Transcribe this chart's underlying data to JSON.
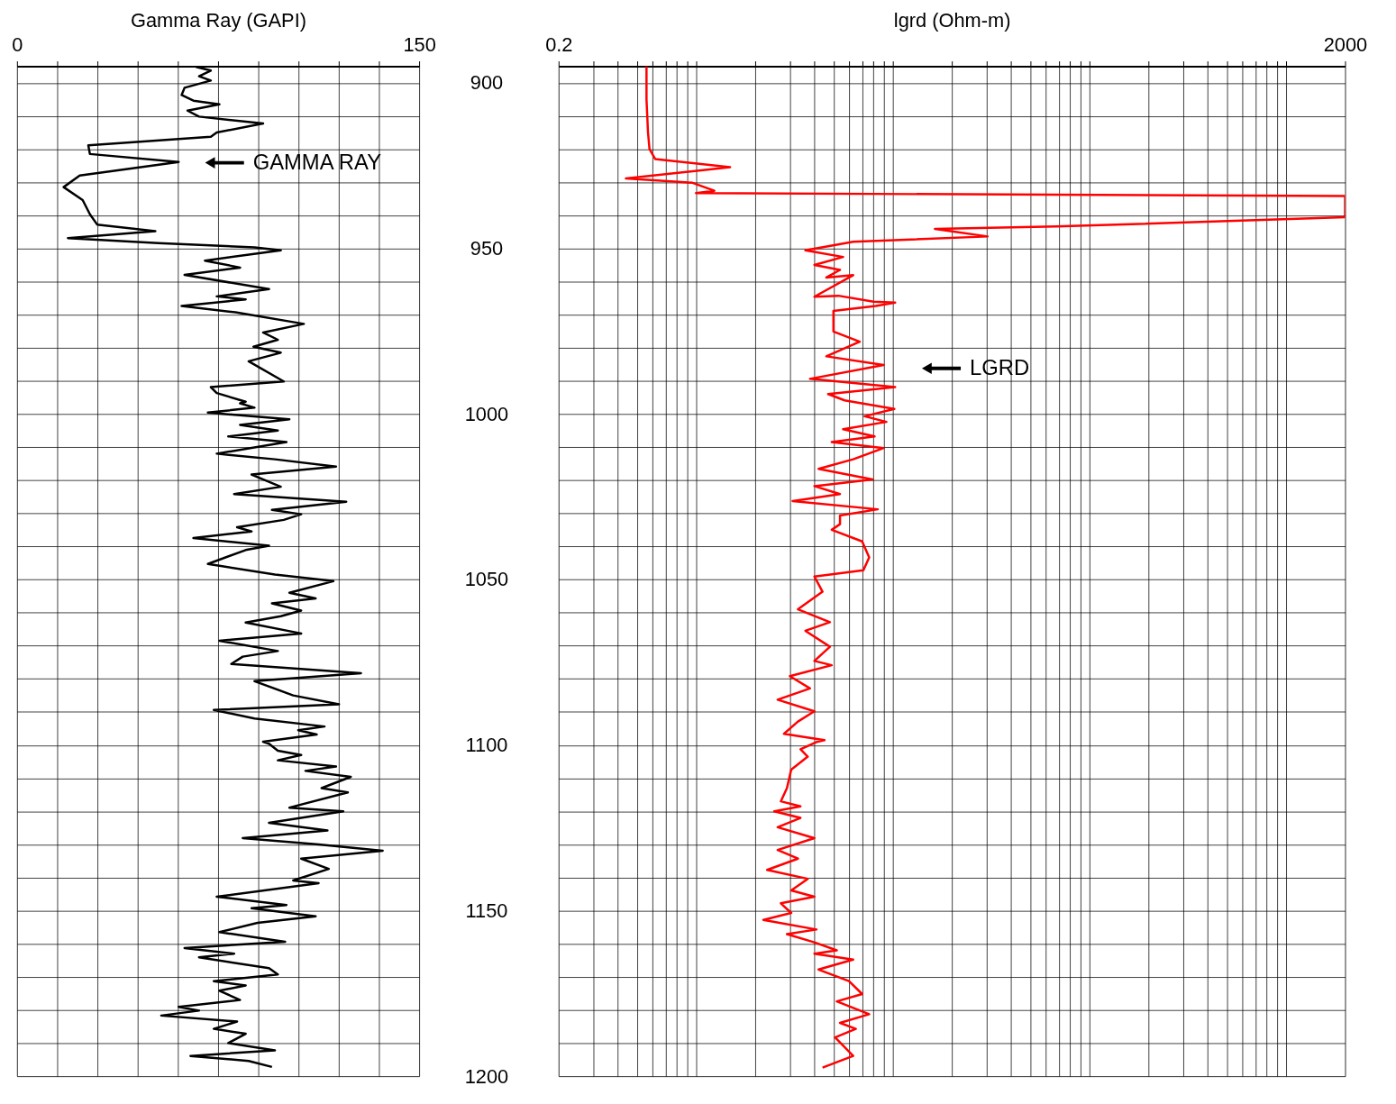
{
  "chart_data": [
    {
      "type": "line",
      "xlabel": "Gamma Ray (GAPI)",
      "xlim": [
        0,
        150
      ],
      "xticks": [
        0,
        {
          "value": 15,
          "label": null
        },
        {
          "value": 30,
          "label": null
        },
        {
          "value": 45,
          "label": null
        },
        {
          "value": 60,
          "label": null
        },
        {
          "value": 75,
          "label": null
        },
        {
          "value": 90,
          "label": null
        },
        {
          "value": 105,
          "label": null
        },
        {
          "value": 120,
          "label": null
        },
        {
          "value": 135,
          "label": null
        },
        150
      ],
      "ylim": [
        1200,
        895
      ],
      "yticks": [
        900,
        {
          "value": 910,
          "label": null
        },
        {
          "value": 920,
          "label": null
        },
        {
          "value": 930,
          "label": null
        },
        {
          "value": 940,
          "label": null
        },
        950,
        {
          "value": 960,
          "label": null
        },
        {
          "value": 970,
          "label": null
        },
        {
          "value": 980,
          "label": null
        },
        {
          "value": 990,
          "label": null
        },
        1000,
        {
          "value": 1010,
          "label": null
        },
        {
          "value": 1020,
          "label": null
        },
        {
          "value": 1030,
          "label": null
        },
        {
          "value": 1040,
          "label": null
        },
        1050,
        {
          "value": 1060,
          "label": null
        },
        {
          "value": 1070,
          "label": null
        },
        {
          "value": 1080,
          "label": null
        },
        {
          "value": 1090,
          "label": null
        },
        1100,
        {
          "value": 1110,
          "label": null
        },
        {
          "value": 1120,
          "label": null
        },
        {
          "value": 1130,
          "label": null
        },
        {
          "value": 1140,
          "label": null
        },
        1150,
        {
          "value": 1160,
          "label": null
        },
        {
          "value": 1170,
          "label": null
        },
        {
          "value": 1180,
          "label": null
        },
        {
          "value": 1190,
          "label": null
        },
        1200
      ],
      "grid": true,
      "line_style": "solid",
      "series": [
        {
          "name": "GAMMA RAY",
          "color": "#000000",
          "x": [
            66.8,
            72.3,
            67.9,
            72.3,
            62.5,
            61.4,
            65.8,
            75.5,
            63.6,
            67.9,
            91.8,
            74.5,
            72.3,
            26.6,
            27.2,
            60.3,
            23.4,
            17.4,
            24.5,
            27.2,
            29.9,
            51.6,
            19,
            52.7,
            88.6,
            98.4,
            70.1,
            83.2,
            62.5,
            94,
            74.5,
            85.3,
            61.4,
            81.5,
            107,
            91.8,
            97.3,
            88.2,
            98.4,
            86.4,
            99.5,
            72.3,
            74.5,
            85.3,
            83.2,
            88.6,
            71.2,
            101.6,
            83.2,
            97.3,
            78.8,
            100.5,
            74.5,
            96.2,
            119,
            87.5,
            98.4,
            81,
            122.8,
            95.1,
            106,
            99.5,
            82.1,
            87.5,
            65.8,
            94,
            85.3,
            71.2,
            96.2,
            118,
            101.6,
            111.4,
            95.1,
            106,
            98.4,
            85.3,
            106,
            75.5,
            97.3,
            84.2,
            79.9,
            128.3,
            88.6,
            103,
            120.1,
            73.4,
            88.6,
            114.7,
            104.9,
            111.8,
            91.8,
            94,
            97.3,
            106,
            97.3,
            119,
            107.6,
            124.5,
            113.6,
            123.4,
            101.6,
            121.7,
            94,
            115.8,
            84.2,
            112.5,
            136.4,
            106,
            116.3,
            103,
            112.5,
            74.5,
            100.5,
            87.5,
            111.4,
            89.7,
            75.5,
            100,
            62.5,
            81,
            67.9,
            94,
            97.3,
            73.4,
            85.3,
            75.5,
            83.2,
            60.3,
            67.9,
            53.8,
            82.1,
            73.4,
            85.3,
            78.8,
            96.2,
            64.7,
            86.4,
            95.1
          ],
          "values": [
            895.2,
            896.3,
            898,
            899.3,
            901.5,
            903.7,
            905.4,
            906.5,
            908.4,
            910.2,
            912.3,
            915,
            916.3,
            918.9,
            921.5,
            923.9,
            928,
            931.5,
            935.4,
            939.7,
            942.8,
            944.8,
            946.9,
            948.4,
            949.7,
            950.6,
            953.7,
            955.8,
            958,
            962.3,
            964.5,
            965.4,
            967.4,
            969.3,
            972.8,
            975.4,
            977.6,
            979.7,
            981.5,
            984.1,
            990.2,
            991.9,
            993.7,
            996.3,
            996.8,
            998.1,
            999.6,
            1001.6,
            1003.3,
            1005,
            1006.8,
            1008.5,
            1012,
            1013.7,
            1015.9,
            1018.3,
            1022,
            1024.2,
            1026.5,
            1029,
            1030.3,
            1032,
            1034.2,
            1035.5,
            1037.5,
            1039.8,
            1041.1,
            1045.3,
            1048.5,
            1050.5,
            1054,
            1055.7,
            1057.2,
            1059.4,
            1061.1,
            1063,
            1066.3,
            1068.5,
            1071.6,
            1073.3,
            1075.5,
            1078.3,
            1080.7,
            1085,
            1087.7,
            1089.4,
            1092,
            1094.4,
            1095.5,
            1096.8,
            1099.0,
            1099.6,
            1101.7,
            1103,
            1104.6,
            1106.5,
            1107.8,
            1109.6,
            1113,
            1114.3,
            1118.9,
            1120,
            1123.5,
            1125.8,
            1128.1,
            1130,
            1131.9,
            1134.3,
            1137.4,
            1140.9,
            1141.7,
            1145.8,
            1148.3,
            1149.3,
            1151.7,
            1153.7,
            1156.5,
            1159.4,
            1161.3,
            1163,
            1164.1,
            1167.4,
            1169.3,
            1171.3,
            1172.6,
            1174.2,
            1177,
            1179.1,
            1180.2,
            1181.7,
            1183.5,
            1185.7,
            1187.2,
            1190,
            1192.2,
            1193.9,
            1195.4,
            1197.2
          ]
        }
      ]
    },
    {
      "type": "line",
      "xlabel": "lgrd (Ohm-m)",
      "log": "x",
      "xlim": [
        0.2,
        2000
      ],
      "xticks": [
        0.2,
        {
          "value": 0.3,
          "label": null
        },
        {
          "value": 0.4,
          "label": null
        },
        {
          "value": 0.5,
          "label": null
        },
        {
          "value": 0.6,
          "label": null
        },
        {
          "value": 0.7,
          "label": null
        },
        {
          "value": 0.8,
          "label": null
        },
        {
          "value": 0.9,
          "label": null
        },
        {
          "value": 1,
          "label": null
        },
        {
          "value": 2,
          "label": null
        },
        {
          "value": 3,
          "label": null
        },
        {
          "value": 4,
          "label": null
        },
        {
          "value": 5,
          "label": null
        },
        {
          "value": 6,
          "label": null
        },
        {
          "value": 7,
          "label": null
        },
        {
          "value": 8,
          "label": null
        },
        {
          "value": 9,
          "label": null
        },
        {
          "value": 10,
          "label": null
        },
        {
          "value": 20,
          "label": null
        },
        {
          "value": 30,
          "label": null
        },
        {
          "value": 40,
          "label": null
        },
        {
          "value": 50,
          "label": null
        },
        {
          "value": 60,
          "label": null
        },
        {
          "value": 70,
          "label": null
        },
        {
          "value": 80,
          "label": null
        },
        {
          "value": 90,
          "label": null
        },
        {
          "value": 100,
          "label": null
        },
        {
          "value": 200,
          "label": null
        },
        {
          "value": 300,
          "label": null
        },
        {
          "value": 400,
          "label": null
        },
        {
          "value": 500,
          "label": null
        },
        {
          "value": 600,
          "label": null
        },
        {
          "value": 700,
          "label": null
        },
        {
          "value": 800,
          "label": null
        },
        {
          "value": 900,
          "label": null
        },
        {
          "value": 1000,
          "label": null
        },
        2000
      ],
      "ylim": [
        1200,
        895
      ],
      "yticks": [
        900,
        {
          "value": 910,
          "label": null
        },
        {
          "value": 920,
          "label": null
        },
        {
          "value": 930,
          "label": null
        },
        {
          "value": 940,
          "label": null
        },
        950,
        {
          "value": 960,
          "label": null
        },
        {
          "value": 970,
          "label": null
        },
        {
          "value": 980,
          "label": null
        },
        {
          "value": 990,
          "label": null
        },
        1000,
        {
          "value": 1010,
          "label": null
        },
        {
          "value": 1020,
          "label": null
        },
        {
          "value": 1030,
          "label": null
        },
        {
          "value": 1040,
          "label": null
        },
        1050,
        {
          "value": 1060,
          "label": null
        },
        {
          "value": 1070,
          "label": null
        },
        {
          "value": 1080,
          "label": null
        },
        {
          "value": 1090,
          "label": null
        },
        1100,
        {
          "value": 1110,
          "label": null
        },
        {
          "value": 1120,
          "label": null
        },
        {
          "value": 1130,
          "label": null
        },
        {
          "value": 1140,
          "label": null
        },
        1150,
        {
          "value": 1160,
          "label": null
        },
        {
          "value": 1170,
          "label": null
        },
        {
          "value": 1180,
          "label": null
        },
        {
          "value": 1190,
          "label": null
        },
        1200
      ],
      "tick_labels": "x",
      "grid": true,
      "line_style": "solid",
      "series": [
        {
          "name": "LGRD",
          "color": "#ff0000",
          "x": [
            0.56,
            0.56,
            0.57,
            0.58,
            0.62,
            1.49,
            0.44,
            0.96,
            1.24,
            1.0,
            2000,
            2000,
            68,
            16.4,
            30.4,
            6.3,
            3.6,
            5.6,
            4.0,
            5.4,
            4.6,
            6.3,
            4.0,
            5.3,
            8.0,
            10.3,
            8.2,
            5.0,
            5.0,
            6.8,
            4.6,
            9.0,
            3.8,
            10.3,
            4.7,
            5.7,
            10.2,
            7.2,
            9.3,
            5.6,
            8.1,
            4.9,
            9.0,
            6.3,
            4.2,
            7.9,
            4.0,
            5.4,
            3.1,
            8.4,
            5.4,
            5.4,
            4.9,
            7.0,
            7.6,
            7.1,
            4.0,
            4.4,
            3.3,
            4.8,
            3.6,
            4.8,
            4.0,
            4.9,
            3.0,
            3.8,
            2.6,
            4.0,
            3.3,
            2.8,
            4.5,
            4.1,
            3.4,
            3.7,
            3.05,
            2.9,
            2.7,
            3.4,
            2.5,
            3.4,
            2.6,
            4.0,
            2.6,
            3.3,
            2.3,
            3.7,
            3.05,
            4.0,
            2.7,
            3.05,
            2.2,
            4.1,
            2.9,
            4.0,
            5.2,
            4.0,
            6.3,
            4.2,
            6.0,
            7.0,
            5.2,
            7.6,
            5.4,
            6.5,
            5.1,
            6.3,
            4.4
          ],
          "values": [
            895,
            905,
            915,
            920,
            923,
            925.5,
            928.9,
            930.2,
            932.6,
            933.3,
            934.2,
            940.6,
            943.4,
            944.1,
            946.4,
            948,
            950.6,
            952.6,
            955,
            956.5,
            958.8,
            958.1,
            964.6,
            964.3,
            966.1,
            966.4,
            967.4,
            968.9,
            975.1,
            978.2,
            982.6,
            985.2,
            989.4,
            991.9,
            994,
            995.9,
            998.5,
            1000.7,
            1002.4,
            1004.6,
            1006.8,
            1008.5,
            1010.3,
            1013.7,
            1016.6,
            1019.8,
            1021.8,
            1024.2,
            1026.3,
            1028.8,
            1030.7,
            1033.3,
            1035,
            1038.5,
            1043.3,
            1047.2,
            1049.1,
            1053.7,
            1059,
            1062.9,
            1065.5,
            1070.3,
            1074.6,
            1075.9,
            1079.2,
            1082.9,
            1086.3,
            1089.8,
            1092.9,
            1096.6,
            1098.5,
            1099.1,
            1101.3,
            1103.5,
            1107.4,
            1113,
            1117,
            1118.5,
            1120,
            1122,
            1124.8,
            1128.1,
            1131.7,
            1134.3,
            1137.7,
            1140.4,
            1143.9,
            1145.8,
            1147.8,
            1150.7,
            1152.8,
            1155.7,
            1157.1,
            1159.6,
            1162,
            1163,
            1164.8,
            1167.8,
            1171.3,
            1175.2,
            1177.4,
            1181.3,
            1183.9,
            1185.7,
            1188.3,
            1193.9,
            1197.4
          ]
        }
      ]
    }
  ]
}
